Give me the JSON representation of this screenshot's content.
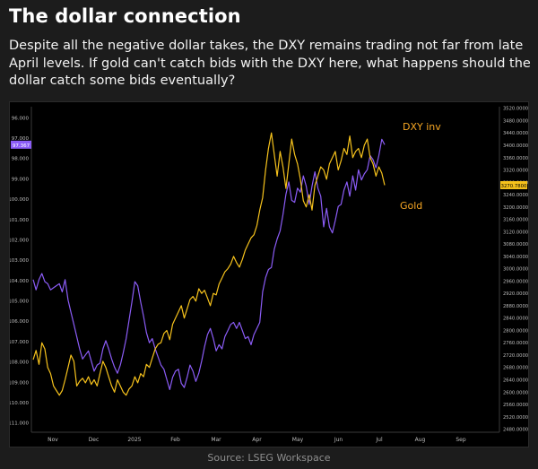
{
  "header": {
    "title": "The dollar connection",
    "subtitle": "Despite all the negative dollar takes, the DXY remains trading not far from late April levels. If gold can't catch bids with the DXY here, what happens should the dollar catch some bids eventually?"
  },
  "footer": {
    "source": "Source: LSEG Workspace"
  },
  "chart_data": {
    "type": "line",
    "x_ticks": [
      "Nov",
      "Dec",
      "2025",
      "Feb",
      "Mar",
      "Apr",
      "May",
      "Jun",
      "Jul",
      "Aug",
      "Sep"
    ],
    "left_axis": {
      "inverted": true,
      "ylim": [
        95.5,
        111.5
      ],
      "ticks": [
        "96.000",
        "97.000",
        "98.000",
        "99.000",
        "100.000",
        "101.000",
        "102.000",
        "103.000",
        "104.000",
        "105.000",
        "106.000",
        "107.000",
        "108.000",
        "109.000",
        "110.000",
        "111.000"
      ],
      "last_value_label": "97.367"
    },
    "right_axis": {
      "ylim": [
        2470,
        3525
      ],
      "ticks": [
        "3520.0000",
        "3480.0000",
        "3440.0000",
        "3400.0000",
        "3360.0000",
        "3320.0000",
        "3280.0000",
        "3240.0000",
        "3200.0000",
        "3160.0000",
        "3120.0000",
        "3080.0000",
        "3040.0000",
        "3000.0000",
        "2960.0000",
        "2920.0000",
        "2880.0000",
        "2840.0000",
        "2800.0000",
        "2760.0000",
        "2720.0000",
        "2680.0000",
        "2640.0000",
        "2600.0000",
        "2560.0000",
        "2520.0000",
        "2480.0000"
      ],
      "last_value_label": "3270.7800"
    },
    "series": [
      {
        "name": "DXY inv",
        "axis": "left",
        "color": "#8b5cf6",
        "x": [
          0,
          2,
          4,
          6,
          8,
          10,
          12,
          14,
          16,
          18,
          20,
          22,
          24,
          26,
          28,
          30,
          32,
          34,
          36,
          38,
          40,
          42,
          44,
          46,
          48,
          50,
          52,
          54,
          56,
          58,
          60,
          62,
          64,
          66,
          68,
          70,
          72,
          74,
          76,
          78,
          80,
          82,
          84,
          86,
          88,
          90,
          92,
          94,
          96,
          98,
          100,
          102,
          104,
          106,
          108,
          110,
          112,
          114,
          116,
          118,
          120,
          122,
          124,
          126,
          128,
          130,
          132,
          134,
          136,
          138,
          140,
          142,
          144,
          146,
          148,
          150,
          152,
          154,
          156,
          158,
          160,
          162,
          164,
          166,
          168,
          170,
          172,
          174,
          176,
          178,
          180,
          182,
          184,
          186,
          188,
          190,
          192,
          194,
          196,
          198,
          200,
          202,
          204,
          206,
          208,
          210,
          212,
          214,
          216,
          218,
          220,
          222,
          224,
          226,
          228,
          230,
          232,
          234,
          236,
          238,
          240,
          242
        ],
        "values": [
          104.0,
          104.5,
          104.0,
          103.7,
          104.1,
          104.2,
          104.5,
          104.4,
          104.3,
          104.2,
          104.6,
          104.0,
          105.0,
          105.6,
          106.2,
          106.8,
          107.4,
          107.9,
          107.7,
          107.5,
          108.0,
          108.5,
          108.2,
          108.1,
          107.4,
          107.0,
          107.4,
          107.9,
          108.3,
          108.6,
          108.2,
          107.6,
          106.9,
          106.0,
          105.1,
          104.1,
          104.3,
          105.1,
          105.8,
          106.6,
          107.1,
          106.9,
          107.4,
          107.8,
          108.2,
          108.4,
          108.9,
          109.4,
          108.8,
          108.5,
          108.4,
          109.1,
          109.3,
          108.8,
          108.2,
          108.5,
          109.0,
          108.6,
          108.0,
          107.3,
          106.7,
          106.4,
          106.9,
          107.5,
          107.2,
          107.4,
          106.8,
          106.5,
          106.2,
          106.1,
          106.4,
          106.1,
          106.5,
          106.9,
          106.8,
          107.2,
          106.7,
          106.4,
          106.1,
          104.6,
          103.9,
          103.5,
          103.4,
          102.5,
          102.0,
          101.6,
          100.8,
          99.8,
          99.2,
          100.1,
          100.2,
          99.5,
          99.7,
          98.9,
          99.4,
          100.3,
          99.4,
          98.7,
          99.5,
          99.9,
          101.4,
          100.5,
          101.4,
          101.7,
          101.1,
          100.4,
          100.3,
          99.6,
          99.2,
          99.9,
          98.9,
          99.6,
          98.6,
          99.1,
          98.8,
          98.6,
          97.9,
          98.1,
          98.5,
          97.9,
          97.1,
          97.367
        ]
      },
      {
        "name": "Gold",
        "axis": "right",
        "color": "#f6c21c",
        "x": [
          0,
          2,
          4,
          6,
          8,
          10,
          12,
          14,
          16,
          18,
          20,
          22,
          24,
          26,
          28,
          30,
          32,
          34,
          36,
          38,
          40,
          42,
          44,
          46,
          48,
          50,
          52,
          54,
          56,
          58,
          60,
          62,
          64,
          66,
          68,
          70,
          72,
          74,
          76,
          78,
          80,
          82,
          84,
          86,
          88,
          90,
          92,
          94,
          96,
          98,
          100,
          102,
          104,
          106,
          108,
          110,
          112,
          114,
          116,
          118,
          120,
          122,
          124,
          126,
          128,
          130,
          132,
          134,
          136,
          138,
          140,
          142,
          144,
          146,
          148,
          150,
          152,
          154,
          156,
          158,
          160,
          162,
          164,
          166,
          168,
          170,
          172,
          174,
          176,
          178,
          180,
          182,
          184,
          186,
          188,
          190,
          192,
          194,
          196,
          198,
          200,
          202,
          204,
          206,
          208,
          210,
          212,
          214,
          216,
          218,
          220,
          222,
          224,
          226,
          228,
          230,
          232,
          234,
          236,
          238,
          240,
          242
        ],
        "values": [
          2705,
          2735,
          2690,
          2760,
          2740,
          2680,
          2660,
          2620,
          2605,
          2590,
          2605,
          2640,
          2680,
          2720,
          2700,
          2620,
          2635,
          2645,
          2630,
          2650,
          2625,
          2640,
          2620,
          2660,
          2700,
          2680,
          2650,
          2620,
          2600,
          2640,
          2620,
          2600,
          2590,
          2610,
          2620,
          2650,
          2630,
          2660,
          2650,
          2690,
          2680,
          2710,
          2740,
          2755,
          2760,
          2790,
          2800,
          2770,
          2820,
          2840,
          2860,
          2880,
          2840,
          2870,
          2900,
          2910,
          2895,
          2935,
          2920,
          2930,
          2905,
          2880,
          2920,
          2915,
          2950,
          2970,
          2990,
          3000,
          3015,
          3040,
          3020,
          3005,
          3030,
          3060,
          3080,
          3100,
          3110,
          3140,
          3190,
          3230,
          3320,
          3390,
          3440,
          3370,
          3300,
          3380,
          3330,
          3260,
          3340,
          3420,
          3370,
          3340,
          3290,
          3220,
          3200,
          3240,
          3190,
          3270,
          3300,
          3330,
          3320,
          3290,
          3340,
          3360,
          3380,
          3320,
          3350,
          3390,
          3370,
          3430,
          3360,
          3380,
          3390,
          3360,
          3400,
          3420,
          3360,
          3340,
          3300,
          3330,
          3310,
          3270.78
        ]
      }
    ],
    "annotations": [
      {
        "text": "DXY inv",
        "color": "#f6a623"
      },
      {
        "text": "Gold",
        "color": "#f6a623"
      }
    ],
    "grid": false,
    "legend": "none"
  }
}
